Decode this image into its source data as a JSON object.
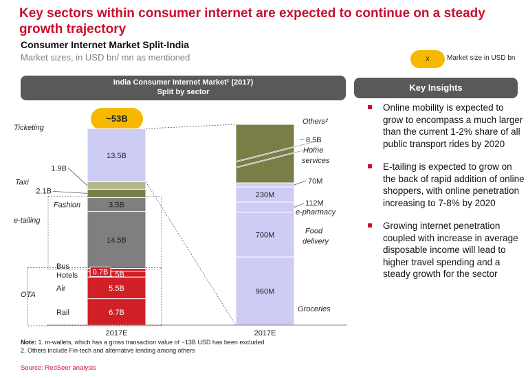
{
  "title": "Key sectors within consumer internet are expected to continue on a steady growth trajectory",
  "subtitle": "Consumer Internet Market Split-India",
  "subnote": "Market sizes, in USD bn/ mn as mentioned",
  "legend": {
    "badge": "X",
    "text": "Market size in USD bn"
  },
  "chart_header": {
    "line1": "India Consumer Internet Market¹ (2017)",
    "line2": "Split by sector"
  },
  "insights_header": "Key Insights",
  "total_badge": "~53B",
  "insights": [
    "Online mobility is expected to grow to encompass a much larger than the current 1-2% share of all public transport rides by 2020",
    "E-tailing is expected to grow on the back of rapid addition of online shoppers, with online penetration increasing to 7-8% by 2020",
    "Growing internet penetration coupled with increase in average disposable income will lead to higher travel spending and a steady growth for the sector"
  ],
  "colors": {
    "red": "#d11f26",
    "grey": "#7f7f7f",
    "olive": "#7a7d45",
    "light_olive": "#b4b78a",
    "lavender": "#ccccf5",
    "accent": "#c8102e",
    "badge": "#f7b900"
  },
  "chart_data": [
    {
      "type": "bar",
      "stacked": true,
      "categories": [
        "2017E"
      ],
      "unit": "USD",
      "series": [
        {
          "name": "Rail",
          "value_label": "6.7B",
          "values": [
            6.7
          ],
          "color": "#d11f26",
          "group": "OTA"
        },
        {
          "name": "Air",
          "value_label": "5.5B",
          "values": [
            5.5
          ],
          "color": "#d11f26",
          "group": "OTA"
        },
        {
          "name": "Bus Hotels",
          "value_label": "1.5B",
          "values": [
            1.5
          ],
          "color": "#d11f26",
          "group": "OTA"
        },
        {
          "name": "",
          "value_label": "0.7B",
          "values": [
            0.7
          ],
          "color": "#d11f26",
          "group": "OTA"
        },
        {
          "name": "",
          "value_label": "14.5B",
          "values": [
            14.5
          ],
          "color": "#7f7f7f",
          "group": "e-tailing"
        },
        {
          "name": "Fashion",
          "value_label": "3.5B",
          "values": [
            3.5
          ],
          "color": "#7f7f7f",
          "group": "e-tailing"
        },
        {
          "name": "Taxi",
          "value_label": "2.1B",
          "values": [
            2.1
          ],
          "color": "#7a7d45",
          "group": ""
        },
        {
          "name": "",
          "value_label": "1.9B",
          "values": [
            1.9
          ],
          "color": "#b4b78a",
          "group": ""
        },
        {
          "name": "Ticketing",
          "value_label": "13.5B",
          "values": [
            13.5
          ],
          "color": "#ccccf5",
          "group": ""
        }
      ]
    },
    {
      "type": "bar",
      "stacked": true,
      "categories": [
        "2017E"
      ],
      "series": [
        {
          "name": "Groceries",
          "value_label": "960M",
          "values": [
            960
          ],
          "color": "#ccccf5"
        },
        {
          "name": "Food delivery",
          "value_label": "700M",
          "values": [
            700
          ],
          "color": "#ccccf5"
        },
        {
          "name": "e-pharmacy",
          "value_label": "112M",
          "values": [
            112
          ],
          "color": "#ccccf5"
        },
        {
          "name": "",
          "value_label": "230M",
          "values": [
            230
          ],
          "color": "#ccccf5"
        },
        {
          "name": "",
          "value_label": "70M",
          "values": [
            70
          ],
          "color": "#ccccf5"
        },
        {
          "name": "Home services",
          "value_label": "8.5B",
          "values": [
            8.5
          ],
          "color": "#7a7d45"
        },
        {
          "name": "Others²",
          "value_label": "",
          "values": [
            null
          ],
          "color": "#7a7d45"
        }
      ]
    }
  ],
  "footnote": {
    "line1_label": "Note:",
    "line1": " 1. m-wallets, which has a gross transaction value of ~13B USD has been excluded",
    "line2": "2. Others include Fin-tech and alternative lending among others"
  },
  "source": "Source: RedSeer analysis"
}
